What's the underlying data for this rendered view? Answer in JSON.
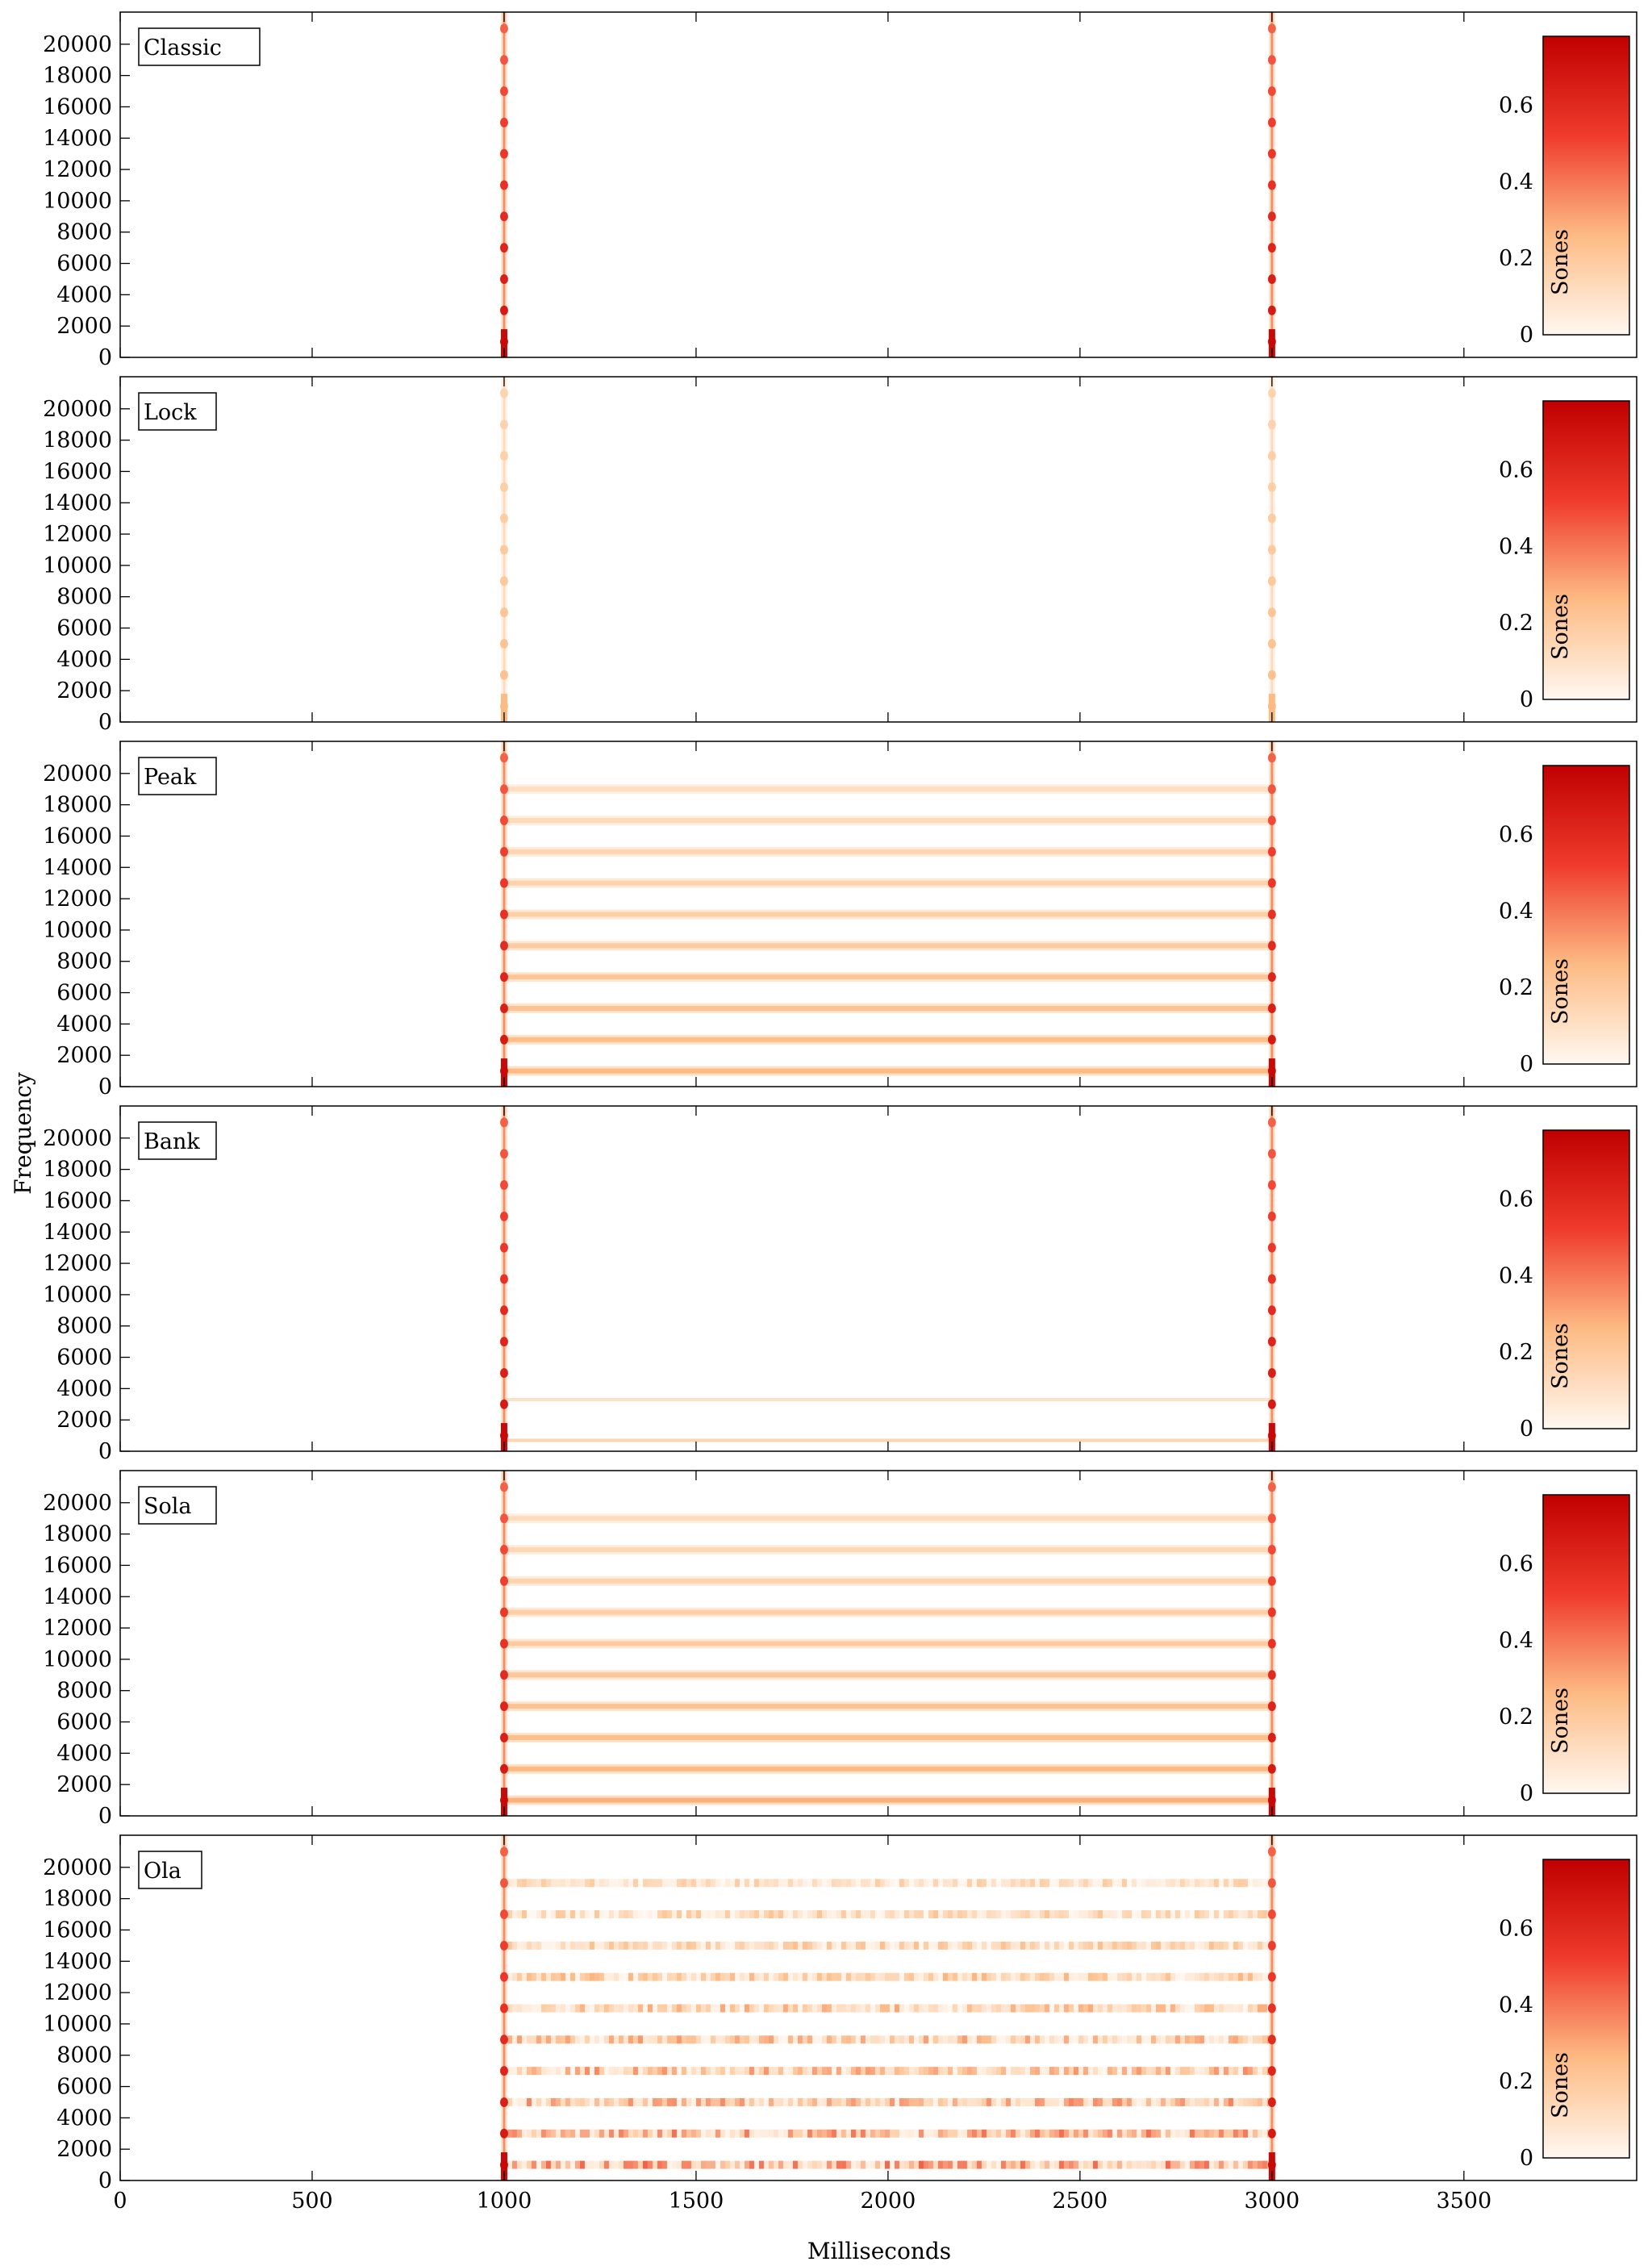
{
  "figure": {
    "ylabel": "Frequency",
    "xlabel": "Milliseconds"
  },
  "colorbar": {
    "label": "Sones",
    "ticks": [
      "0",
      "0.2",
      "0.4",
      "0.6"
    ],
    "range": [
      0,
      0.78
    ],
    "colors": [
      "#fff8f0",
      "#fdbb84",
      "#ef3b2c",
      "#c00000"
    ]
  },
  "chart_data": {
    "type": "heatmap",
    "shared_x": {
      "label": "Milliseconds",
      "range": [
        0,
        3950
      ],
      "ticks": [
        0,
        500,
        1000,
        1500,
        2000,
        2500,
        3000,
        3500
      ]
    },
    "shared_y": {
      "label": "Frequency",
      "range": [
        0,
        22050
      ],
      "ticks": [
        0,
        2000,
        4000,
        6000,
        8000,
        10000,
        12000,
        14000,
        16000,
        18000,
        20000
      ]
    },
    "panels": [
      {
        "name": "Classic",
        "onsets_ms": [
          1000,
          3000
        ],
        "onset_strength": 1.0,
        "sustained_bands_hz": [],
        "band_intensity": 0,
        "band_style": "none"
      },
      {
        "name": "Lock",
        "onsets_ms": [
          1000,
          3000
        ],
        "onset_strength": 0.35,
        "sustained_bands_hz": [],
        "band_intensity": 0,
        "band_style": "none"
      },
      {
        "name": "Peak",
        "onsets_ms": [
          1000,
          3000
        ],
        "onset_strength": 1.0,
        "sustained_bands_hz": [
          1000,
          3000,
          5000,
          7000,
          9000,
          11000,
          13000,
          15000,
          17000,
          19000
        ],
        "band_intensity": 0.28,
        "band_style": "smooth"
      },
      {
        "name": "Bank",
        "onsets_ms": [
          1000,
          3000
        ],
        "onset_strength": 1.0,
        "sustained_bands_hz": [
          700,
          3300
        ],
        "band_intensity": 0.12,
        "band_style": "thin"
      },
      {
        "name": "Sola",
        "onsets_ms": [
          1000,
          3000
        ],
        "onset_strength": 1.0,
        "sustained_bands_hz": [
          1000,
          3000,
          5000,
          7000,
          9000,
          11000,
          13000,
          15000,
          17000,
          19000
        ],
        "band_intensity": 0.3,
        "band_style": "smooth"
      },
      {
        "name": "Ola",
        "onsets_ms": [
          1000,
          3000
        ],
        "onset_strength": 1.0,
        "sustained_bands_hz": [
          1000,
          3000,
          5000,
          7000,
          9000,
          11000,
          13000,
          15000,
          17000,
          19000
        ],
        "band_intensity": 0.38,
        "band_style": "grainy"
      }
    ]
  }
}
